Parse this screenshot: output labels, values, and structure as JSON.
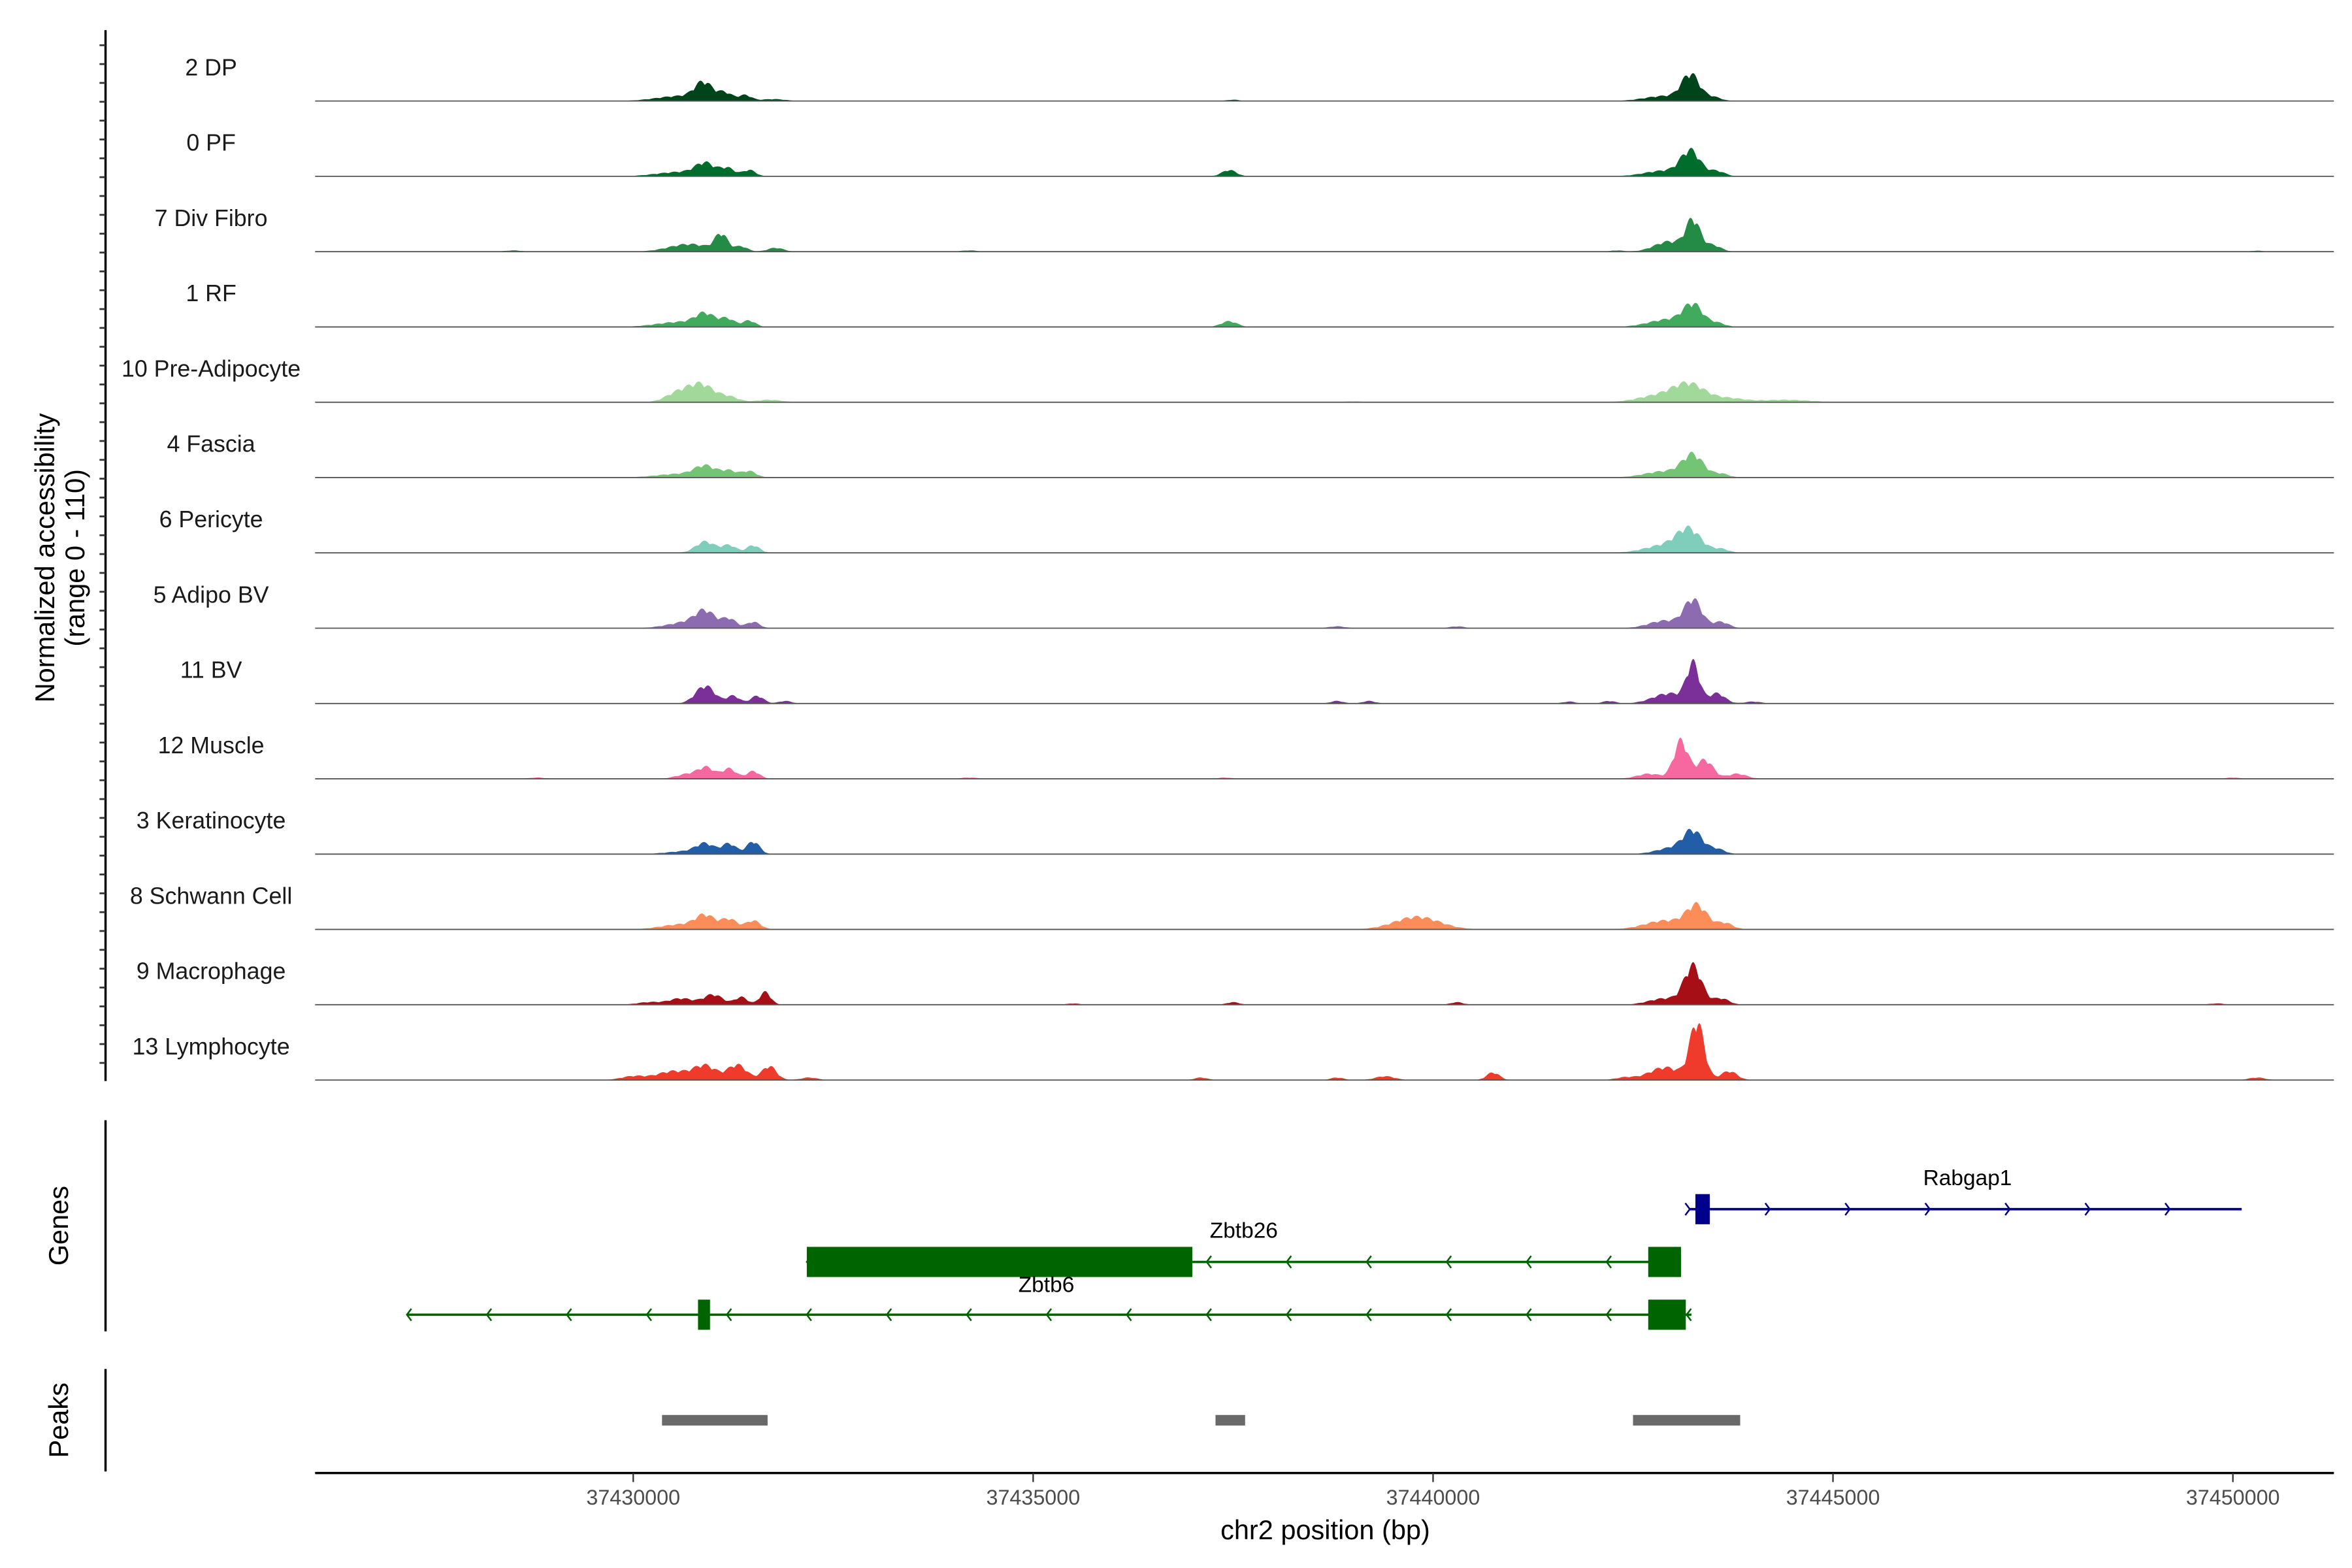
{
  "chart_data": {
    "type": "area",
    "title": "",
    "ylabel": "Normalized accessibility",
    "ylabel_range": "(range 0 - 110)",
    "ylim": [
      0,
      110
    ],
    "xlabel": "chr2 position (bp)",
    "xlim": [
      37426000,
      37451260
    ],
    "xticks": [
      37430000,
      37435000,
      37440000,
      37445000,
      37450000
    ],
    "xtick_labels": [
      "37430000",
      "37435000",
      "37440000",
      "37445000",
      "37450000"
    ],
    "tracks": [
      {
        "name": "2 DP",
        "color": "#00441b",
        "peaks": [
          [
            37430600,
            8,
            300
          ],
          [
            37430880,
            26,
            110
          ],
          [
            37431150,
            12,
            90
          ],
          [
            37431400,
            9,
            80
          ],
          [
            37431750,
            3,
            150
          ],
          [
            37442900,
            8,
            250
          ],
          [
            37443220,
            40,
            110
          ],
          [
            37443500,
            6,
            100
          ],
          [
            37437500,
            2,
            80
          ]
        ]
      },
      {
        "name": "0 PF",
        "color": "#006d2c",
        "peaks": [
          [
            37430600,
            7,
            300
          ],
          [
            37430900,
            18,
            120
          ],
          [
            37431180,
            12,
            90
          ],
          [
            37431450,
            10,
            80
          ],
          [
            37437450,
            10,
            90
          ],
          [
            37442900,
            9,
            250
          ],
          [
            37443220,
            38,
            120
          ],
          [
            37443550,
            8,
            100
          ]
        ]
      },
      {
        "name": "7 Div Fibro",
        "color": "#238b45",
        "peaks": [
          [
            37430700,
            12,
            250
          ],
          [
            37431100,
            26,
            80
          ],
          [
            37431350,
            8,
            80
          ],
          [
            37431780,
            6,
            100
          ],
          [
            37428500,
            2,
            100
          ],
          [
            37434200,
            2,
            100
          ],
          [
            37442300,
            2,
            80
          ],
          [
            37442950,
            16,
            180
          ],
          [
            37443250,
            48,
            90
          ],
          [
            37443500,
            10,
            100
          ],
          [
            37450300,
            1.5,
            80
          ]
        ]
      },
      {
        "name": "1 RF",
        "color": "#41ab5d",
        "peaks": [
          [
            37430600,
            8,
            300
          ],
          [
            37430900,
            18,
            120
          ],
          [
            37431180,
            12,
            90
          ],
          [
            37431450,
            10,
            80
          ],
          [
            37437450,
            9,
            100
          ],
          [
            37442950,
            12,
            250
          ],
          [
            37443250,
            32,
            120
          ],
          [
            37443550,
            6,
            100
          ]
        ]
      },
      {
        "name": "10 Pre-Adipocyte",
        "color": "#a1d99b",
        "peaks": [
          [
            37430550,
            14,
            150
          ],
          [
            37430850,
            28,
            160
          ],
          [
            37431200,
            8,
            120
          ],
          [
            37431700,
            4,
            150
          ],
          [
            37442800,
            10,
            250
          ],
          [
            37443200,
            28,
            200
          ],
          [
            37443700,
            6,
            200
          ],
          [
            37444400,
            4,
            300
          ],
          [
            37439000,
            1.5,
            100
          ]
        ]
      },
      {
        "name": "4 Fascia",
        "color": "#74c476",
        "peaks": [
          [
            37430600,
            6,
            300
          ],
          [
            37430900,
            16,
            130
          ],
          [
            37431200,
            10,
            100
          ],
          [
            37431450,
            10,
            90
          ],
          [
            37442900,
            10,
            250
          ],
          [
            37443250,
            34,
            130
          ],
          [
            37443600,
            6,
            100
          ]
        ]
      },
      {
        "name": "6 Pericyte",
        "color": "#7fcdbb",
        "peaks": [
          [
            37430900,
            18,
            120
          ],
          [
            37431200,
            12,
            90
          ],
          [
            37431500,
            12,
            80
          ],
          [
            37442900,
            12,
            250
          ],
          [
            37443200,
            34,
            150
          ],
          [
            37443600,
            6,
            100
          ]
        ]
      },
      {
        "name": "5 Adipo BV",
        "color": "#8c6bb1",
        "peaks": [
          [
            37430700,
            10,
            250
          ],
          [
            37430900,
            22,
            120
          ],
          [
            37431200,
            14,
            90
          ],
          [
            37431500,
            10,
            80
          ],
          [
            37438800,
            3,
            100
          ],
          [
            37440300,
            3,
            90
          ],
          [
            37442900,
            12,
            200
          ],
          [
            37443250,
            44,
            110
          ],
          [
            37443600,
            10,
            100
          ]
        ]
      },
      {
        "name": "11 BV",
        "color": "#7b2f98",
        "peaks": [
          [
            37430900,
            28,
            120
          ],
          [
            37431250,
            12,
            80
          ],
          [
            37431550,
            12,
            80
          ],
          [
            37431900,
            4,
            80
          ],
          [
            37438800,
            4,
            80
          ],
          [
            37439200,
            4,
            80
          ],
          [
            37441700,
            3,
            80
          ],
          [
            37442200,
            4,
            80
          ],
          [
            37442950,
            16,
            200
          ],
          [
            37443250,
            60,
            80
          ],
          [
            37443550,
            16,
            100
          ],
          [
            37444000,
            3,
            100
          ]
        ]
      },
      {
        "name": "12 Muscle",
        "color": "#f768a1",
        "peaks": [
          [
            37430700,
            8,
            150
          ],
          [
            37430920,
            16,
            100
          ],
          [
            37431200,
            16,
            90
          ],
          [
            37431500,
            12,
            80
          ],
          [
            37428800,
            2,
            100
          ],
          [
            37434200,
            2,
            100
          ],
          [
            37437400,
            2,
            80
          ],
          [
            37442700,
            8,
            150
          ],
          [
            37443100,
            60,
            90
          ],
          [
            37443400,
            30,
            100
          ],
          [
            37443800,
            8,
            120
          ],
          [
            37450000,
            2,
            80
          ]
        ]
      },
      {
        "name": "3 Keratinocyte",
        "color": "#225ea8",
        "peaks": [
          [
            37430700,
            5,
            250
          ],
          [
            37430900,
            14,
            110
          ],
          [
            37431200,
            16,
            90
          ],
          [
            37431500,
            20,
            80
          ],
          [
            37443000,
            10,
            200
          ],
          [
            37443250,
            34,
            120
          ],
          [
            37443550,
            8,
            100
          ]
        ]
      },
      {
        "name": "8 Schwann Cell",
        "color": "#fc8d59",
        "peaks": [
          [
            37430600,
            8,
            250
          ],
          [
            37430900,
            20,
            120
          ],
          [
            37431200,
            16,
            100
          ],
          [
            37431500,
            14,
            90
          ],
          [
            37439800,
            20,
            280
          ],
          [
            37442900,
            14,
            250
          ],
          [
            37443300,
            36,
            130
          ],
          [
            37443650,
            10,
            100
          ]
        ]
      },
      {
        "name": "9 Macrophage",
        "color": "#a50f15",
        "peaks": [
          [
            37430200,
            4,
            150
          ],
          [
            37430600,
            10,
            150
          ],
          [
            37431000,
            16,
            120
          ],
          [
            37431350,
            12,
            80
          ],
          [
            37431650,
            20,
            70
          ],
          [
            37435500,
            2,
            80
          ],
          [
            37437500,
            4,
            80
          ],
          [
            37440300,
            4,
            80
          ],
          [
            37442900,
            10,
            200
          ],
          [
            37443250,
            60,
            110
          ],
          [
            37443600,
            10,
            100
          ],
          [
            37449800,
            2,
            100
          ]
        ]
      },
      {
        "name": "13 Lymphocyte",
        "color": "#ef3b2c",
        "peaks": [
          [
            37430000,
            6,
            150
          ],
          [
            37430500,
            14,
            200
          ],
          [
            37430900,
            22,
            140
          ],
          [
            37431300,
            24,
            120
          ],
          [
            37431700,
            22,
            90
          ],
          [
            37432200,
            4,
            100
          ],
          [
            37437100,
            4,
            80
          ],
          [
            37438800,
            4,
            80
          ],
          [
            37439400,
            6,
            120
          ],
          [
            37440750,
            12,
            80
          ],
          [
            37442400,
            4,
            120
          ],
          [
            37442900,
            20,
            200
          ],
          [
            37443300,
            90,
            90
          ],
          [
            37443700,
            14,
            100
          ],
          [
            37450300,
            4,
            100
          ]
        ]
      }
    ]
  },
  "genes": {
    "label": "Genes",
    "items": [
      {
        "name": "Rabgap1",
        "strand": "+",
        "color": "#00008b",
        "start": 37443210,
        "end": 37450110,
        "exons": [
          [
            37443280,
            37443460
          ]
        ]
      },
      {
        "name": "Zbtb26",
        "strand": "-",
        "color": "#006400",
        "start": 37432170,
        "end": 37443100,
        "exons": [
          [
            37432170,
            37436990
          ],
          [
            37442690,
            37443100
          ]
        ]
      },
      {
        "name": "Zbtb6",
        "strand": "-",
        "color": "#006400",
        "start": 37427170,
        "end": 37443230,
        "exons": [
          [
            37430810,
            37430960
          ],
          [
            37442690,
            37443160
          ]
        ]
      }
    ]
  },
  "peaks": {
    "label": "Peaks",
    "color": "#696969",
    "regions": [
      [
        37430360,
        37431680
      ],
      [
        37437280,
        37437650
      ],
      [
        37442500,
        37443840
      ]
    ]
  }
}
